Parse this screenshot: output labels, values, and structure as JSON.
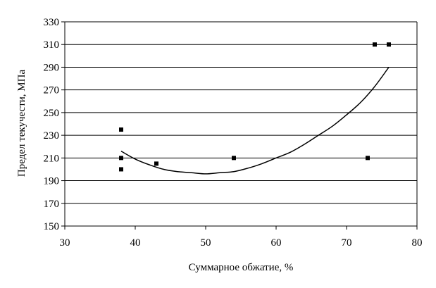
{
  "chart_data": {
    "type": "scatter",
    "title": "",
    "xlabel": "Суммарное обжатие, %",
    "ylabel": "Предел текучести, МПа",
    "xlim": [
      30,
      80
    ],
    "ylim": [
      150,
      330
    ],
    "x_ticks": [
      30,
      40,
      50,
      60,
      70,
      80
    ],
    "y_ticks": [
      150,
      170,
      190,
      210,
      230,
      250,
      270,
      290,
      310,
      330
    ],
    "grid": "horizontal",
    "legend": "none",
    "series": [
      {
        "type": "scatter",
        "marker": "square",
        "points": [
          {
            "x": 38,
            "y": 235
          },
          {
            "x": 38,
            "y": 210
          },
          {
            "x": 38,
            "y": 200
          },
          {
            "x": 43,
            "y": 205
          },
          {
            "x": 54,
            "y": 210
          },
          {
            "x": 73,
            "y": 210
          },
          {
            "x": 74,
            "y": 310
          },
          {
            "x": 76,
            "y": 310
          }
        ]
      },
      {
        "type": "line",
        "style": "polynomial trend",
        "points": [
          {
            "x": 38,
            "y": 216
          },
          {
            "x": 40,
            "y": 209
          },
          {
            "x": 42,
            "y": 204
          },
          {
            "x": 44,
            "y": 200
          },
          {
            "x": 46,
            "y": 198
          },
          {
            "x": 48,
            "y": 197
          },
          {
            "x": 50,
            "y": 196
          },
          {
            "x": 52,
            "y": 197
          },
          {
            "x": 54,
            "y": 198
          },
          {
            "x": 56,
            "y": 201
          },
          {
            "x": 58,
            "y": 205
          },
          {
            "x": 60,
            "y": 210
          },
          {
            "x": 62,
            "y": 215
          },
          {
            "x": 64,
            "y": 222
          },
          {
            "x": 66,
            "y": 230
          },
          {
            "x": 68,
            "y": 238
          },
          {
            "x": 70,
            "y": 248
          },
          {
            "x": 72,
            "y": 259
          },
          {
            "x": 74,
            "y": 273
          },
          {
            "x": 76,
            "y": 290
          }
        ]
      }
    ],
    "colors": {
      "marker": "#000000",
      "line": "#000000",
      "grid": "#000000",
      "axis": "#000000"
    }
  }
}
